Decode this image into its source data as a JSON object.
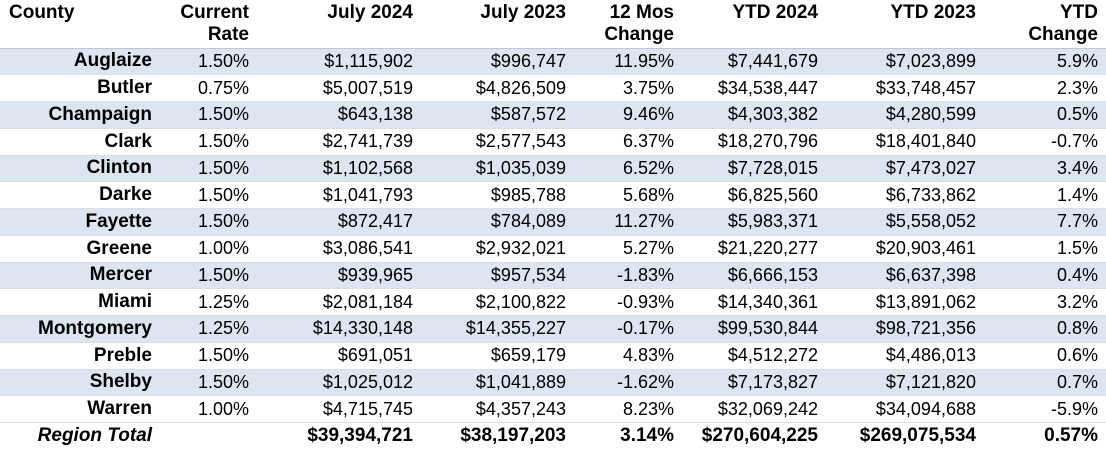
{
  "headers": [
    "County",
    "Current Rate",
    "July 2024",
    "July 2023",
    "12 Mos Change",
    "YTD 2024",
    "YTD 2023",
    "YTD Change"
  ],
  "header_lines": [
    [
      "County",
      ""
    ],
    [
      "Current",
      "Rate"
    ],
    [
      "July 2024",
      ""
    ],
    [
      "July 2023",
      ""
    ],
    [
      "12 Mos",
      "Change"
    ],
    [
      "YTD 2024",
      ""
    ],
    [
      "YTD 2023",
      ""
    ],
    [
      "YTD",
      "Change"
    ]
  ],
  "rows": [
    [
      "Auglaize",
      "1.50%",
      "$1,115,902",
      "$996,747",
      "11.95%",
      "$7,441,679",
      "$7,023,899",
      "5.9%"
    ],
    [
      "Butler",
      "0.75%",
      "$5,007,519",
      "$4,826,509",
      "3.75%",
      "$34,538,447",
      "$33,748,457",
      "2.3%"
    ],
    [
      "Champaign",
      "1.50%",
      "$643,138",
      "$587,572",
      "9.46%",
      "$4,303,382",
      "$4,280,599",
      "0.5%"
    ],
    [
      "Clark",
      "1.50%",
      "$2,741,739",
      "$2,577,543",
      "6.37%",
      "$18,270,796",
      "$18,401,840",
      "-0.7%"
    ],
    [
      "Clinton",
      "1.50%",
      "$1,102,568",
      "$1,035,039",
      "6.52%",
      "$7,728,015",
      "$7,473,027",
      "3.4%"
    ],
    [
      "Darke",
      "1.50%",
      "$1,041,793",
      "$985,788",
      "5.68%",
      "$6,825,560",
      "$6,733,862",
      "1.4%"
    ],
    [
      "Fayette",
      "1.50%",
      "$872,417",
      "$784,089",
      "11.27%",
      "$5,983,371",
      "$5,558,052",
      "7.7%"
    ],
    [
      "Greene",
      "1.00%",
      "$3,086,541",
      "$2,932,021",
      "5.27%",
      "$21,220,277",
      "$20,903,461",
      "1.5%"
    ],
    [
      "Mercer",
      "1.50%",
      "$939,965",
      "$957,534",
      "-1.83%",
      "$6,666,153",
      "$6,637,398",
      "0.4%"
    ],
    [
      "Miami",
      "1.25%",
      "$2,081,184",
      "$2,100,822",
      "-0.93%",
      "$14,340,361",
      "$13,891,062",
      "3.2%"
    ],
    [
      "Montgomery",
      "1.25%",
      "$14,330,148",
      "$14,355,227",
      "-0.17%",
      "$99,530,844",
      "$98,721,356",
      "0.8%"
    ],
    [
      "Preble",
      "1.50%",
      "$691,051",
      "$659,179",
      "4.83%",
      "$4,512,272",
      "$4,486,013",
      "0.6%"
    ],
    [
      "Shelby",
      "1.50%",
      "$1,025,012",
      "$1,041,889",
      "-1.62%",
      "$7,173,827",
      "$7,121,820",
      "0.7%"
    ],
    [
      "Warren",
      "1.00%",
      "$4,715,745",
      "$4,357,243",
      "8.23%",
      "$32,069,242",
      "$34,094,688",
      "-5.9%"
    ]
  ],
  "total": [
    "Region Total",
    "",
    "$39,394,721",
    "$38,197,203",
    "3.14%",
    "$270,604,225",
    "$269,075,534",
    "0.57%"
  ],
  "colors": {
    "band": "#dde5f1",
    "text": "#000000"
  }
}
